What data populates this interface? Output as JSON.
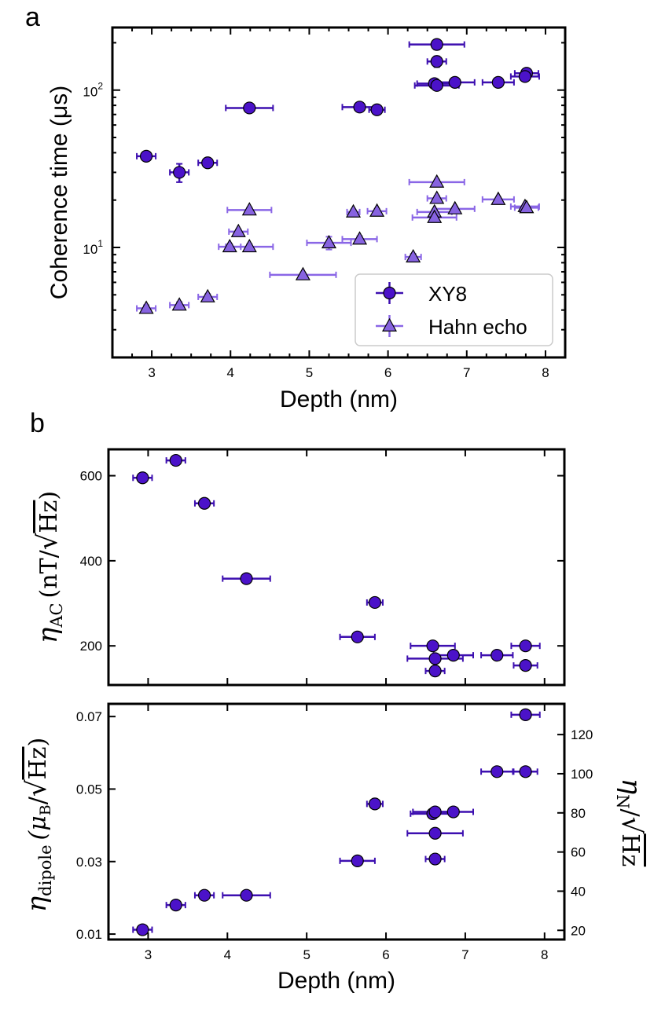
{
  "colors": {
    "xy8_fill": "#4b12c9",
    "xy8_err": "#3d0fb0",
    "hahn_fill": "#8763e0",
    "hahn_err": "#8a66e6",
    "edge": "#000000"
  },
  "panel_labels": {
    "a": "a",
    "b": "b"
  },
  "chart_data": [
    {
      "id": "coherence",
      "type": "scatter",
      "yscale": "log",
      "xlabel": "Depth (nm)",
      "ylabel": "Coherence time (μs)",
      "xlim": [
        2.5,
        8.25
      ],
      "ylim": [
        2.0,
        250
      ],
      "xticks": [
        3,
        4,
        5,
        6,
        7,
        8
      ],
      "yticks_major": [
        {
          "value": 10,
          "base": "10",
          "exp": "1"
        },
        {
          "value": 100,
          "base": "10",
          "exp": "2"
        }
      ],
      "legend": {
        "position": "bottom-right",
        "entries": [
          "XY8",
          "Hahn echo"
        ]
      },
      "series": [
        {
          "name": "XY8",
          "marker": "circle",
          "points": [
            {
              "x": 2.93,
              "y": 38,
              "xerr": 0.12,
              "yerr": 2
            },
            {
              "x": 3.35,
              "y": 30,
              "xerr": 0.12,
              "yerr": 4
            },
            {
              "x": 3.71,
              "y": 34.5,
              "xerr": 0.12,
              "yerr": 2
            },
            {
              "x": 4.24,
              "y": 77,
              "xerr": 0.3,
              "yerr": 3
            },
            {
              "x": 5.64,
              "y": 78,
              "xerr": 0.22,
              "yerr": 3
            },
            {
              "x": 5.86,
              "y": 75,
              "xerr": 0.1,
              "yerr": 3
            },
            {
              "x": 6.62,
              "y": 195,
              "xerr": 0.35,
              "yerr": 14
            },
            {
              "x": 6.62,
              "y": 152,
              "xerr": 0.12,
              "yerr": 12
            },
            {
              "x": 6.59,
              "y": 110,
              "xerr": 0.22,
              "yerr": 4
            },
            {
              "x": 6.62,
              "y": 107,
              "xerr": 0.28,
              "yerr": 4
            },
            {
              "x": 6.85,
              "y": 112,
              "xerr": 0.25,
              "yerr": 4
            },
            {
              "x": 7.4,
              "y": 112,
              "xerr": 0.2,
              "yerr": 4
            },
            {
              "x": 7.76,
              "y": 128,
              "xerr": 0.15,
              "yerr": 5
            },
            {
              "x": 7.74,
              "y": 122,
              "xerr": 0.18,
              "yerr": 5
            }
          ]
        },
        {
          "name": "Hahn echo",
          "marker": "triangle",
          "points": [
            {
              "x": 2.93,
              "y": 4.1,
              "xerr": 0.12,
              "yerr": 0.2
            },
            {
              "x": 3.35,
              "y": 4.3,
              "xerr": 0.12,
              "yerr": 0.2
            },
            {
              "x": 3.71,
              "y": 4.85,
              "xerr": 0.12,
              "yerr": 0.2
            },
            {
              "x": 3.99,
              "y": 10.1,
              "xerr": 0.14,
              "yerr": 0.4
            },
            {
              "x": 4.1,
              "y": 12.6,
              "xerr": 0.12,
              "yerr": 0.4
            },
            {
              "x": 4.24,
              "y": 17.3,
              "xerr": 0.28,
              "yerr": 0.6
            },
            {
              "x": 4.24,
              "y": 10.1,
              "xerr": 0.3,
              "yerr": 0.4
            },
            {
              "x": 4.92,
              "y": 6.7,
              "xerr": 0.42,
              "yerr": 0.2
            },
            {
              "x": 5.25,
              "y": 10.7,
              "xerr": 0.28,
              "yerr": 1.0
            },
            {
              "x": 5.56,
              "y": 16.8,
              "xerr": 0.08,
              "yerr": 0.6
            },
            {
              "x": 5.64,
              "y": 11.3,
              "xerr": 0.22,
              "yerr": 0.5
            },
            {
              "x": 5.86,
              "y": 17.0,
              "xerr": 0.12,
              "yerr": 0.6
            },
            {
              "x": 6.32,
              "y": 8.7,
              "xerr": 0.1,
              "yerr": 0.4
            },
            {
              "x": 6.62,
              "y": 26,
              "xerr": 0.35,
              "yerr": 1.0
            },
            {
              "x": 6.62,
              "y": 20.5,
              "xerr": 0.12,
              "yerr": 0.8
            },
            {
              "x": 6.59,
              "y": 16.8,
              "xerr": 0.22,
              "yerr": 0.6
            },
            {
              "x": 6.59,
              "y": 15.5,
              "xerr": 0.28,
              "yerr": 0.6
            },
            {
              "x": 6.85,
              "y": 17.6,
              "xerr": 0.25,
              "yerr": 0.6
            },
            {
              "x": 7.4,
              "y": 20.2,
              "xerr": 0.2,
              "yerr": 0.6
            },
            {
              "x": 7.74,
              "y": 18.2,
              "xerr": 0.18,
              "yerr": 0.6
            },
            {
              "x": 7.76,
              "y": 17.9,
              "xerr": 0.15,
              "yerr": 0.6
            }
          ]
        }
      ]
    },
    {
      "id": "eta_ac",
      "type": "scatter",
      "xlabel": "",
      "ylabel": {
        "sym": "η",
        "sub": "AC",
        "unit": "(nT/",
        "sqrt": "Hz",
        "close": ")"
      },
      "xlim": [
        2.5,
        8.25
      ],
      "ylim": [
        108,
        662
      ],
      "xticks": [
        3,
        4,
        5,
        6,
        7,
        8
      ],
      "yticks": [
        200,
        400,
        600
      ],
      "series": [
        {
          "name": "XY8",
          "marker": "circle",
          "points": [
            {
              "x": 2.93,
              "y": 595,
              "xerr": 0.12
            },
            {
              "x": 3.35,
              "y": 636,
              "xerr": 0.12
            },
            {
              "x": 3.71,
              "y": 535,
              "xerr": 0.12
            },
            {
              "x": 4.24,
              "y": 358,
              "xerr": 0.3
            },
            {
              "x": 5.64,
              "y": 221,
              "xerr": 0.22
            },
            {
              "x": 5.86,
              "y": 302,
              "xerr": 0.1
            },
            {
              "x": 6.59,
              "y": 200,
              "xerr": 0.28
            },
            {
              "x": 6.62,
              "y": 170,
              "xerr": 0.35
            },
            {
              "x": 6.62,
              "y": 141,
              "xerr": 0.12
            },
            {
              "x": 6.85,
              "y": 178,
              "xerr": 0.25
            },
            {
              "x": 7.4,
              "y": 178,
              "xerr": 0.2
            },
            {
              "x": 7.76,
              "y": 200,
              "xerr": 0.18
            },
            {
              "x": 7.76,
              "y": 154,
              "xerr": 0.15
            }
          ]
        }
      ]
    },
    {
      "id": "eta_dipole",
      "type": "scatter",
      "xlabel": "Depth (nm)",
      "ylabel": {
        "sym": "η",
        "sub": "dipole",
        "unit": "(μ",
        "unitsub": "B",
        "slash": "/",
        "sqrt": "Hz",
        "close": ")"
      },
      "y2label": {
        "sym": "η",
        "sub": "N",
        "slash": "/",
        "sqrt": "Hz"
      },
      "xlim": [
        2.5,
        8.25
      ],
      "ylim": [
        0.0085,
        0.0735
      ],
      "y2lim": [
        15.3,
        135.7
      ],
      "xticks": [
        3,
        4,
        5,
        6,
        7,
        8
      ],
      "yticks": [
        0.01,
        0.03,
        0.05,
        0.07
      ],
      "yticklabels": [
        "0.01",
        "0.03",
        "0.05",
        "0.07"
      ],
      "y2ticks": [
        20,
        40,
        60,
        80,
        100,
        120
      ],
      "series": [
        {
          "name": "XY8",
          "marker": "circle",
          "points": [
            {
              "x": 2.93,
              "y": 0.0112,
              "xerr": 0.12
            },
            {
              "x": 3.35,
              "y": 0.018,
              "xerr": 0.12
            },
            {
              "x": 3.71,
              "y": 0.0207,
              "xerr": 0.12
            },
            {
              "x": 4.24,
              "y": 0.0207,
              "xerr": 0.3
            },
            {
              "x": 5.64,
              "y": 0.0302,
              "xerr": 0.22
            },
            {
              "x": 5.86,
              "y": 0.0459,
              "xerr": 0.1
            },
            {
              "x": 6.59,
              "y": 0.0432,
              "xerr": 0.28
            },
            {
              "x": 6.62,
              "y": 0.0437,
              "xerr": 0.28
            },
            {
              "x": 6.85,
              "y": 0.0437,
              "xerr": 0.25
            },
            {
              "x": 6.62,
              "y": 0.0378,
              "xerr": 0.35
            },
            {
              "x": 6.62,
              "y": 0.0307,
              "xerr": 0.12
            },
            {
              "x": 7.4,
              "y": 0.0548,
              "xerr": 0.2
            },
            {
              "x": 7.76,
              "y": 0.0548,
              "xerr": 0.15
            },
            {
              "x": 7.76,
              "y": 0.0705,
              "xerr": 0.18
            }
          ]
        }
      ]
    }
  ]
}
